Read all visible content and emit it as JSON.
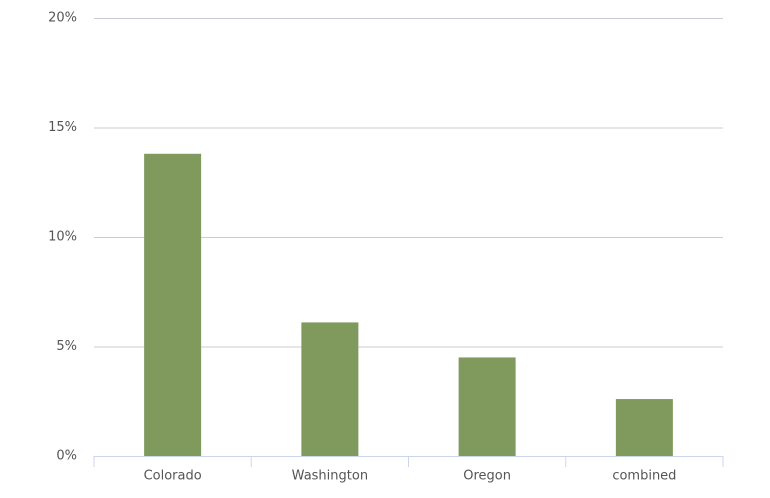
{
  "chart_data": {
    "type": "bar",
    "categories": [
      "Colorado",
      "Washington",
      "Oregon",
      "combined"
    ],
    "values": [
      13.8,
      6.1,
      4.5,
      2.6
    ],
    "color": "#7f9a5c",
    "ylim": [
      0,
      20
    ],
    "yticks": [
      {
        "value": 0,
        "label": "0%"
      },
      {
        "value": 5,
        "label": "5%"
      },
      {
        "value": 10,
        "label": "10%"
      },
      {
        "value": 15,
        "label": "15%"
      },
      {
        "value": 20,
        "label": "20%"
      }
    ],
    "grid": true
  }
}
